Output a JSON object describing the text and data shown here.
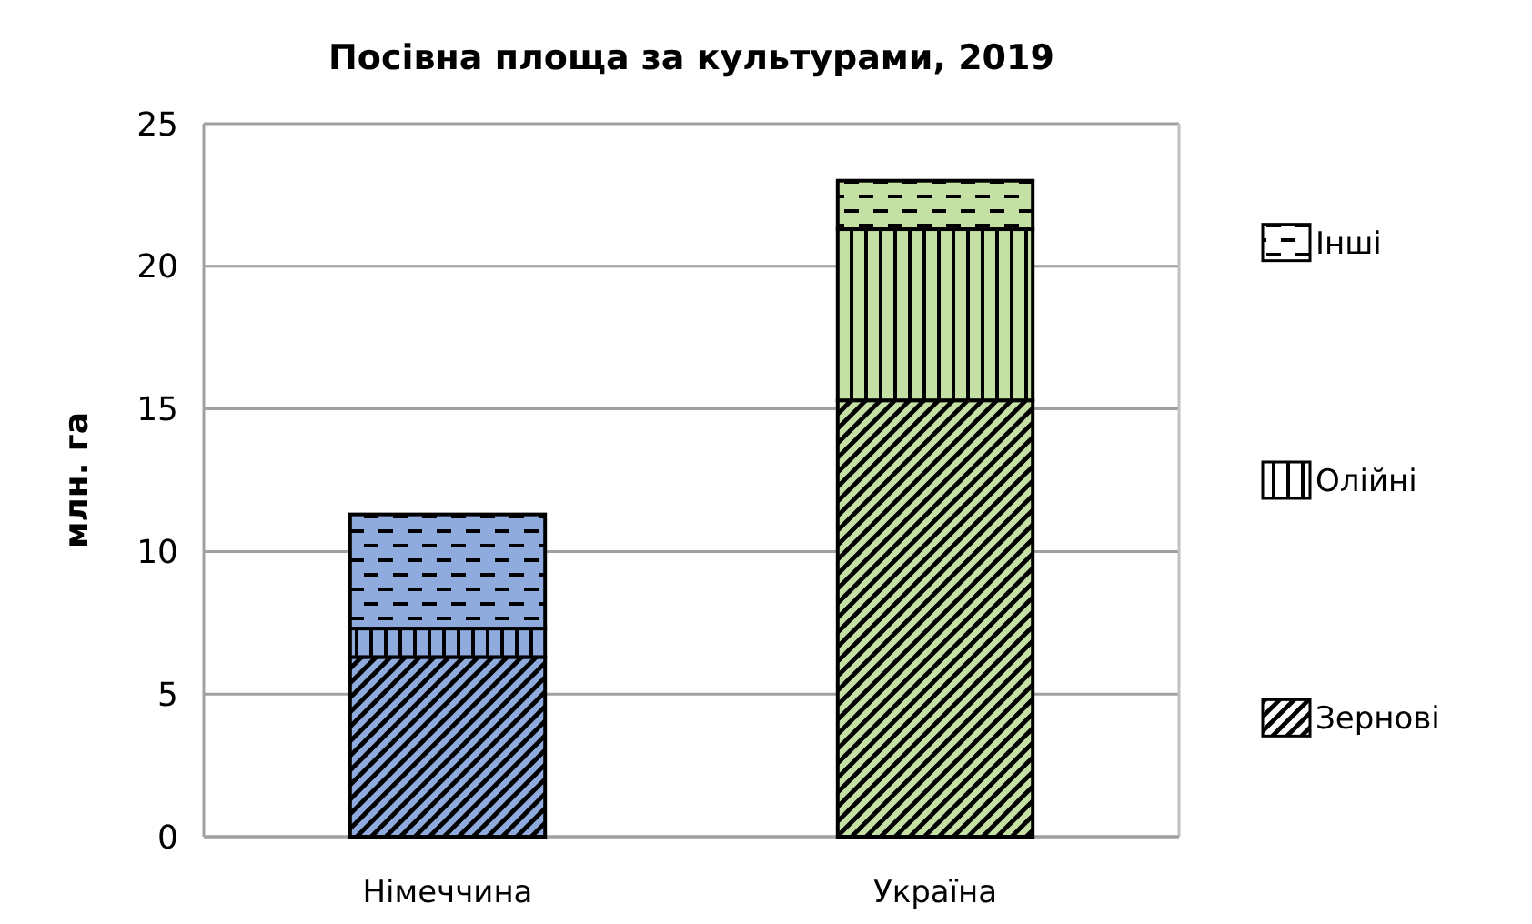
{
  "chart_data": {
    "type": "bar",
    "title": "Посівна площа за культурами, 2019",
    "ylabel": "млн. га",
    "categories": [
      "Німеччина",
      "Україна"
    ],
    "stacked": true,
    "ylim": [
      0,
      25
    ],
    "yticks": [
      0,
      5,
      10,
      15,
      20,
      25
    ],
    "grid": "y",
    "legend": "right",
    "series": [
      {
        "name": "Зернові",
        "colors": [
          "#8faadc",
          "#c5e0a5"
        ],
        "values": [
          6.3,
          15.3
        ]
      },
      {
        "name": "Олійні",
        "colors": [
          "#8faadc",
          "#c5e0a5"
        ],
        "values": [
          1.0,
          6.0
        ]
      },
      {
        "name": "Інші",
        "colors": [
          "#8faadc",
          "#c5e0a5"
        ],
        "values": [
          4.0,
          1.7
        ]
      }
    ]
  }
}
